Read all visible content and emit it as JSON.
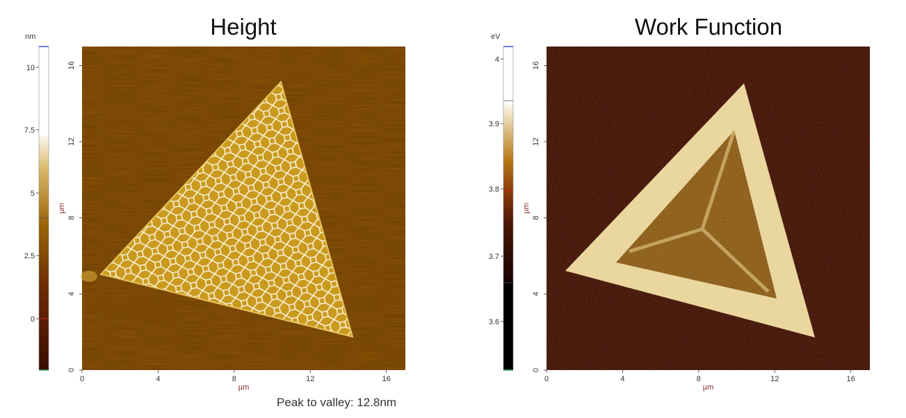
{
  "panels": {
    "height": {
      "title": "Height",
      "colorbar_unit": "nm",
      "colorbar_ticks": [
        "10",
        "7.5",
        "5",
        "2.5",
        "0"
      ],
      "x_ticks": [
        "0",
        "4",
        "8",
        "12",
        "16"
      ],
      "y_ticks": [
        "0",
        "4",
        "8",
        "12",
        "16"
      ],
      "x_label": "µm",
      "y_label": "µm",
      "image_semantic": "afm-height-map-triangle-flake-with-crack-network"
    },
    "work_function": {
      "title": "Work Function",
      "colorbar_unit": "eV",
      "colorbar_ticks": [
        "4",
        "3.9",
        "3.8",
        "3.7",
        "3.6"
      ],
      "x_ticks": [
        "0",
        "4",
        "8",
        "12",
        "16"
      ],
      "y_ticks": [
        "0",
        "4",
        "8",
        "12",
        "16"
      ],
      "x_label": "µm",
      "y_label": "µm",
      "image_semantic": "kpfm-work-function-map-triangle-flake"
    }
  },
  "footer": {
    "peak_to_valley": "Peak to valley: 12.8nm"
  },
  "colors": {
    "height_background": "#8a5206",
    "height_flake": "#c99a1e",
    "height_cracks": "#fff8e6",
    "wf_background": "#2a0903",
    "wf_flake_edge": "#f3e4b0",
    "wf_flake_center": "#8a5a14",
    "axis_label": "#8b2b2b"
  }
}
